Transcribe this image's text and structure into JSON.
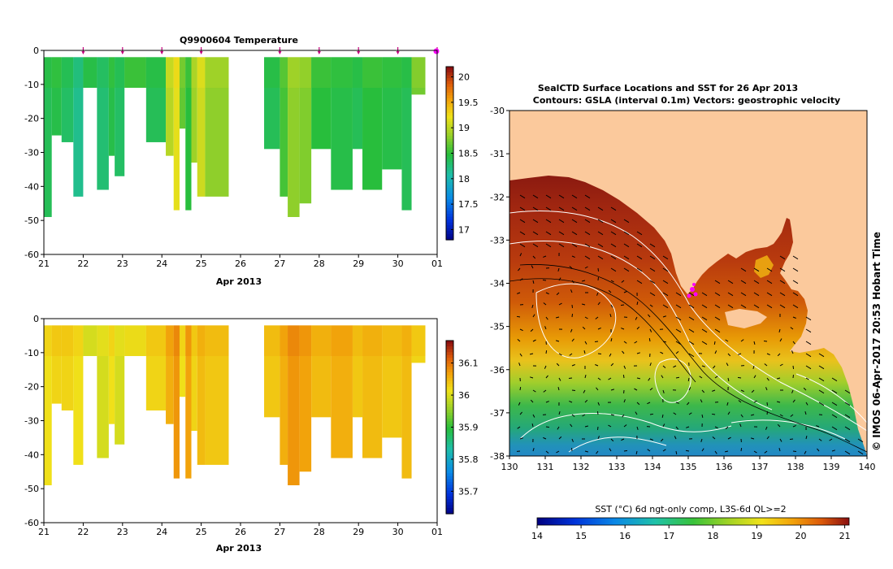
{
  "chart_data": [
    {
      "type": "heatmap",
      "title": "Q9900604  Temperature",
      "xlabel": "Apr 2013",
      "x_ticks": [
        "21",
        "22",
        "23",
        "24",
        "25",
        "26",
        "27",
        "28",
        "29",
        "30",
        "01"
      ],
      "y_ticks": [
        "0",
        "-10",
        "-20",
        "-30",
        "-40",
        "-50",
        "-60"
      ],
      "ylim": [
        -60,
        0
      ],
      "colorbar": {
        "ticks": [
          "17",
          "17.5",
          "18",
          "18.5",
          "19",
          "19.5",
          "20"
        ],
        "range": [
          16.8,
          20.2
        ]
      },
      "profile_markers_day": [
        22,
        23,
        24,
        25,
        27,
        28,
        29,
        30,
        31
      ],
      "profiles": [
        {
          "t0": 21.0,
          "t1": 21.2,
          "d0": -2,
          "d1": -49,
          "v": 18.4
        },
        {
          "t0": 21.2,
          "t1": 21.45,
          "d0": -2,
          "d1": -25,
          "v": 18.45
        },
        {
          "t0": 21.45,
          "t1": 21.75,
          "d0": -2,
          "d1": -27,
          "v": 18.35
        },
        {
          "t0": 21.75,
          "t1": 22.0,
          "d0": -2,
          "d1": -43,
          "v": 18.2
        },
        {
          "t0": 22.0,
          "t1": 22.35,
          "d0": -2,
          "d1": -11,
          "v": 18.4
        },
        {
          "t0": 22.35,
          "t1": 22.65,
          "d0": -2,
          "d1": -41,
          "v": 18.3
        },
        {
          "t0": 22.65,
          "t1": 22.8,
          "d0": -2,
          "d1": -31,
          "v": 18.45
        },
        {
          "t0": 22.8,
          "t1": 23.05,
          "d0": -2,
          "d1": -37,
          "v": 18.35
        },
        {
          "t0": 23.05,
          "t1": 23.6,
          "d0": -2,
          "d1": -11,
          "v": 18.5
        },
        {
          "t0": 23.6,
          "t1": 24.1,
          "d0": -2,
          "d1": -27,
          "v": 18.4
        },
        {
          "t0": 24.1,
          "t1": 24.3,
          "d0": -2,
          "d1": -31,
          "v": 19.0
        },
        {
          "t0": 24.3,
          "t1": 24.45,
          "d0": -2,
          "d1": -47,
          "v": 19.2
        },
        {
          "t0": 24.45,
          "t1": 24.6,
          "d0": -2,
          "d1": -23,
          "v": 18.7
        },
        {
          "t0": 24.6,
          "t1": 24.75,
          "d0": -2,
          "d1": -47,
          "v": 18.5
        },
        {
          "t0": 24.75,
          "t1": 24.9,
          "d0": -2,
          "d1": -33,
          "v": 18.9
        },
        {
          "t0": 24.9,
          "t1": 25.1,
          "d0": -2,
          "d1": -43,
          "v": 19.1
        },
        {
          "t0": 25.1,
          "t1": 25.7,
          "d0": -2,
          "d1": -43,
          "v": 18.85
        },
        {
          "t0": 26.6,
          "t1": 27.0,
          "d0": -2,
          "d1": -29,
          "v": 18.4
        },
        {
          "t0": 27.0,
          "t1": 27.2,
          "d0": -2,
          "d1": -43,
          "v": 18.6
        },
        {
          "t0": 27.2,
          "t1": 27.5,
          "d0": -2,
          "d1": -49,
          "v": 18.85
        },
        {
          "t0": 27.5,
          "t1": 27.8,
          "d0": -2,
          "d1": -45,
          "v": 18.8
        },
        {
          "t0": 27.8,
          "t1": 28.3,
          "d0": -2,
          "d1": -29,
          "v": 18.5
        },
        {
          "t0": 28.3,
          "t1": 28.85,
          "d0": -2,
          "d1": -41,
          "v": 18.45
        },
        {
          "t0": 28.85,
          "t1": 29.1,
          "d0": -2,
          "d1": -29,
          "v": 18.4
        },
        {
          "t0": 29.1,
          "t1": 29.6,
          "d0": -2,
          "d1": -41,
          "v": 18.5
        },
        {
          "t0": 29.6,
          "t1": 30.1,
          "d0": -2,
          "d1": -35,
          "v": 18.45
        },
        {
          "t0": 30.1,
          "t1": 30.35,
          "d0": -2,
          "d1": -47,
          "v": 18.4
        },
        {
          "t0": 30.35,
          "t1": 30.7,
          "d0": -2,
          "d1": -13,
          "v": 18.75
        }
      ]
    },
    {
      "type": "heatmap",
      "title": "",
      "xlabel": "Apr 2013",
      "x_ticks": [
        "21",
        "22",
        "23",
        "24",
        "25",
        "26",
        "27",
        "28",
        "29",
        "30",
        "01"
      ],
      "y_ticks": [
        "0",
        "-10",
        "-20",
        "-30",
        "-40",
        "-50",
        "-60"
      ],
      "ylim": [
        -60,
        0
      ],
      "colorbar": {
        "ticks": [
          "35.7",
          "35.8",
          "35.9",
          "36",
          "36.1"
        ],
        "range": [
          35.63,
          36.17
        ]
      },
      "profiles": [
        {
          "t0": 21.0,
          "t1": 21.2,
          "d0": -2,
          "d1": -49,
          "v": 36.02
        },
        {
          "t0": 21.2,
          "t1": 21.45,
          "d0": -2,
          "d1": -25,
          "v": 36.03
        },
        {
          "t0": 21.45,
          "t1": 21.75,
          "d0": -2,
          "d1": -27,
          "v": 36.03
        },
        {
          "t0": 21.75,
          "t1": 22.0,
          "d0": -2,
          "d1": -43,
          "v": 36.02
        },
        {
          "t0": 22.0,
          "t1": 22.35,
          "d0": -2,
          "d1": -11,
          "v": 35.99
        },
        {
          "t0": 22.35,
          "t1": 22.65,
          "d0": -2,
          "d1": -41,
          "v": 36.0
        },
        {
          "t0": 22.65,
          "t1": 22.8,
          "d0": -2,
          "d1": -31,
          "v": 36.02
        },
        {
          "t0": 22.8,
          "t1": 23.05,
          "d0": -2,
          "d1": -37,
          "v": 36.0
        },
        {
          "t0": 23.05,
          "t1": 23.6,
          "d0": -2,
          "d1": -11,
          "v": 36.01
        },
        {
          "t0": 23.6,
          "t1": 24.1,
          "d0": -2,
          "d1": -27,
          "v": 36.03
        },
        {
          "t0": 24.1,
          "t1": 24.3,
          "d0": -2,
          "d1": -31,
          "v": 36.06
        },
        {
          "t0": 24.3,
          "t1": 24.45,
          "d0": -2,
          "d1": -47,
          "v": 36.08
        },
        {
          "t0": 24.45,
          "t1": 24.6,
          "d0": -2,
          "d1": -23,
          "v": 36.02
        },
        {
          "t0": 24.6,
          "t1": 24.75,
          "d0": -2,
          "d1": -47,
          "v": 36.07
        },
        {
          "t0": 24.75,
          "t1": 24.9,
          "d0": -2,
          "d1": -33,
          "v": 36.03
        },
        {
          "t0": 24.9,
          "t1": 25.1,
          "d0": -2,
          "d1": -43,
          "v": 36.05
        },
        {
          "t0": 25.1,
          "t1": 25.7,
          "d0": -2,
          "d1": -43,
          "v": 36.04
        },
        {
          "t0": 26.6,
          "t1": 27.0,
          "d0": -2,
          "d1": -29,
          "v": 36.04
        },
        {
          "t0": 27.0,
          "t1": 27.2,
          "d0": -2,
          "d1": -43,
          "v": 36.06
        },
        {
          "t0": 27.2,
          "t1": 27.5,
          "d0": -2,
          "d1": -49,
          "v": 36.08
        },
        {
          "t0": 27.5,
          "t1": 27.8,
          "d0": -2,
          "d1": -45,
          "v": 36.07
        },
        {
          "t0": 27.8,
          "t1": 28.3,
          "d0": -2,
          "d1": -29,
          "v": 36.05
        },
        {
          "t0": 28.3,
          "t1": 28.85,
          "d0": -2,
          "d1": -41,
          "v": 36.06
        },
        {
          "t0": 28.85,
          "t1": 29.1,
          "d0": -2,
          "d1": -29,
          "v": 36.04
        },
        {
          "t0": 29.1,
          "t1": 29.6,
          "d0": -2,
          "d1": -41,
          "v": 36.05
        },
        {
          "t0": 29.6,
          "t1": 30.1,
          "d0": -2,
          "d1": -35,
          "v": 36.04
        },
        {
          "t0": 30.1,
          "t1": 30.35,
          "d0": -2,
          "d1": -47,
          "v": 36.05
        },
        {
          "t0": 30.35,
          "t1": 30.7,
          "d0": -2,
          "d1": -13,
          "v": 36.03
        }
      ]
    },
    {
      "type": "heatmap",
      "title": "SealCTD Surface Locations and SST for 26 Apr 2013",
      "subtitle": "Contours: GSLA (interval 0.1m) Vectors: geostrophic velocity",
      "xlim": [
        130,
        140
      ],
      "ylim": [
        -38,
        -30
      ],
      "x_ticks": [
        "130",
        "131",
        "132",
        "133",
        "134",
        "135",
        "136",
        "137",
        "138",
        "139",
        "140"
      ],
      "y_ticks": [
        "-30",
        "-31",
        "-32",
        "-33",
        "-34",
        "-35",
        "-36",
        "-37",
        "-38"
      ],
      "seal_location": {
        "lon": 135.35,
        "lat": -34.2
      },
      "side_label": "© IMOS 06-Apr-2017 20:53 Hobart Time",
      "colorbar": {
        "label": "SST (°C) 6d ngt-only comp, L3S-6d QL>=2",
        "ticks": [
          "14",
          "15",
          "16",
          "17",
          "18",
          "19",
          "20",
          "21"
        ],
        "range": [
          14,
          21.1
        ]
      }
    }
  ],
  "colors": {
    "land": "#FBC99C",
    "seal_marker": "#FF00FF",
    "profile_marker": "#C0007A"
  }
}
